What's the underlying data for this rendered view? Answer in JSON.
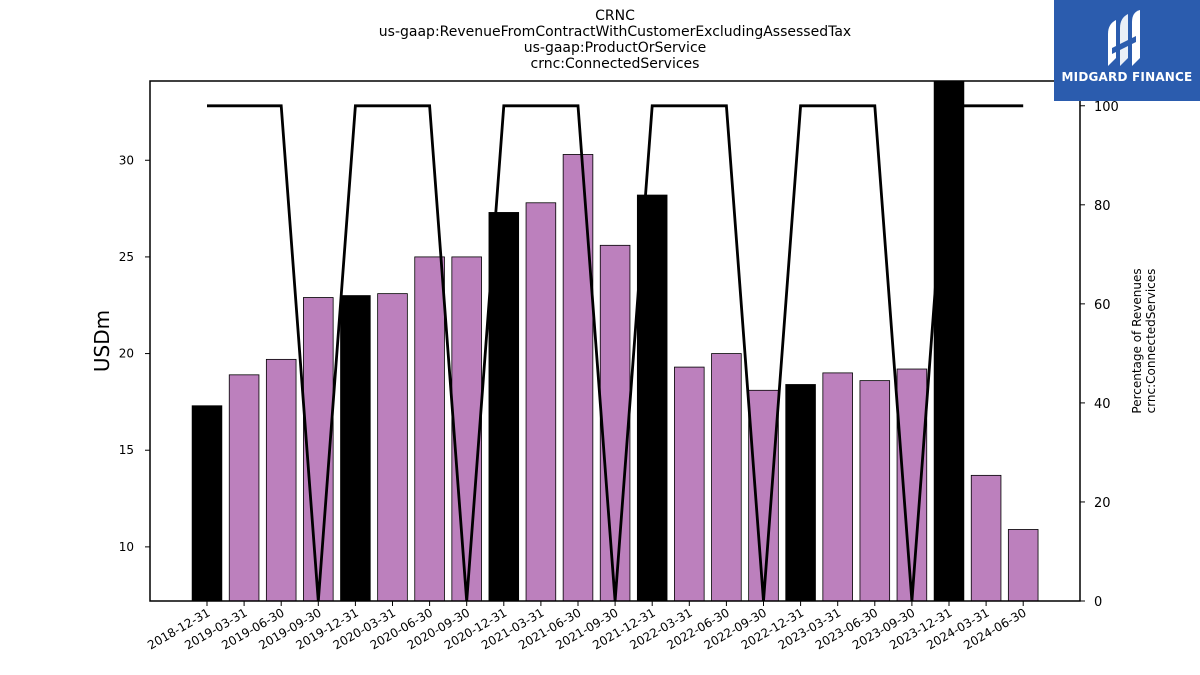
{
  "chart_data": {
    "type": "bar",
    "title_lines": [
      "CRNC",
      "us-gaap:RevenueFromContractWithCustomerExcludingAssessedTax",
      "us-gaap:ProductOrService",
      "crnc:ConnectedServices"
    ],
    "ylabel": "USDm",
    "ylabel_right": [
      "Percentage of Revenues",
      "crnc:ConnectedServices"
    ],
    "ylim": [
      7.2,
      34.1
    ],
    "yticks": [
      10,
      15,
      20,
      25,
      30
    ],
    "ylim_right": [
      0,
      105
    ],
    "yticks_right": [
      0,
      20,
      40,
      60,
      80,
      100
    ],
    "categories": [
      "2018-12-31",
      "2019-03-31",
      "2019-06-30",
      "2019-09-30",
      "2019-12-31",
      "2020-03-31",
      "2020-06-30",
      "2020-09-30",
      "2020-12-31",
      "2021-03-31",
      "2021-06-30",
      "2021-09-30",
      "2021-12-31",
      "2022-03-31",
      "2022-06-30",
      "2022-09-30",
      "2022-12-31",
      "2023-03-31",
      "2023-06-30",
      "2023-09-30",
      "2023-12-31",
      "2024-03-31",
      "2024-06-30"
    ],
    "values": [
      17.3,
      18.9,
      19.7,
      22.9,
      23.0,
      23.1,
      25.0,
      25.0,
      27.3,
      27.8,
      30.3,
      25.6,
      28.2,
      19.3,
      20.0,
      18.1,
      18.4,
      19.0,
      18.6,
      19.2,
      34.1,
      13.7,
      10.9
    ],
    "bar_kinds": [
      "annual",
      "quarter",
      "quarter",
      "quarter",
      "annual",
      "quarter",
      "quarter",
      "quarter",
      "annual",
      "quarter",
      "quarter",
      "quarter",
      "annual",
      "quarter",
      "quarter",
      "quarter",
      "annual",
      "quarter",
      "quarter",
      "quarter",
      "annual",
      "quarter",
      "quarter"
    ],
    "line_values": [
      100,
      100,
      100,
      0,
      100,
      100,
      100,
      0,
      100,
      100,
      100,
      0,
      100,
      100,
      100,
      0,
      100,
      100,
      100,
      0,
      100,
      100,
      100
    ],
    "colors": {
      "annual": "#000000",
      "quarter": "#bc80bd",
      "line": "#000000"
    },
    "grid": false
  },
  "logo": {
    "text": "MIDGARD FINANCE",
    "background": "#2b5cae",
    "icon": "midgard-logo-icon"
  }
}
